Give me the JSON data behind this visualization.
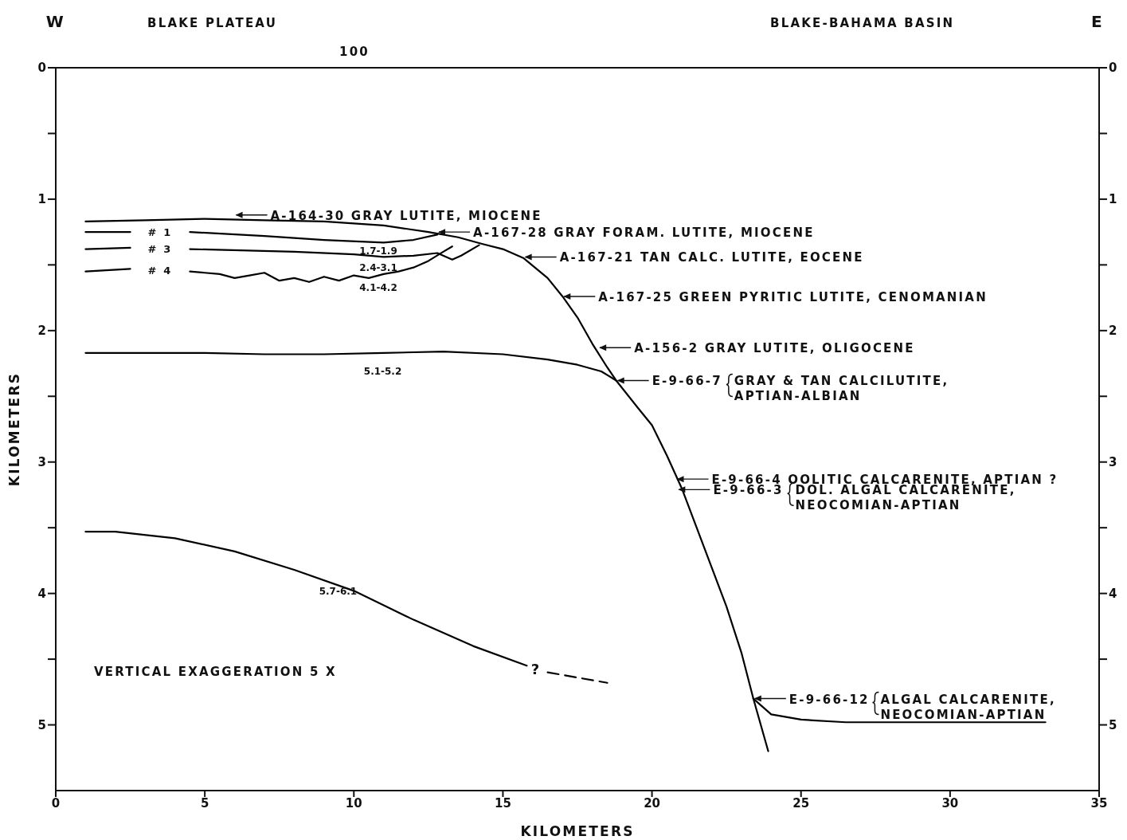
{
  "chart_data": {
    "type": "line",
    "xlabel": "KILOMETERS",
    "ylabel": "KILOMETERS",
    "xlim": [
      0,
      35
    ],
    "xticks": [
      0,
      5,
      10,
      15,
      20,
      25,
      30,
      35
    ],
    "ylim": [
      5.5,
      0
    ],
    "yticks": [
      0,
      {
        "value": 0.5,
        "label": null
      },
      1,
      {
        "value": 1.5,
        "label": null
      },
      2,
      {
        "value": 2.5,
        "label": null
      },
      3,
      {
        "value": 3.5,
        "label": null
      },
      4,
      {
        "value": 4.5,
        "label": null
      },
      5
    ],
    "y2lim": [
      5.5,
      0
    ],
    "y2ticks": [
      0,
      {
        "value": 0.5,
        "label": null
      },
      1,
      {
        "value": 1.5,
        "label": null
      },
      2,
      {
        "value": 2.5,
        "label": null
      },
      3,
      {
        "value": 3.5,
        "label": null
      },
      4,
      {
        "value": 4.5,
        "label": null
      },
      5
    ],
    "marker": "none",
    "line_style": "solid",
    "series": [
      {
        "color": "#000000",
        "x": [
          1,
          3,
          5,
          7,
          9,
          11,
          12.5,
          13.5,
          14.3,
          15,
          15.7,
          16.5,
          17,
          17.5,
          18,
          18.5,
          18.8,
          19.5,
          20,
          20.5,
          21,
          21.5,
          22,
          22.5,
          23,
          23.4,
          23.9
        ],
        "values": [
          1.17,
          1.16,
          1.15,
          1.16,
          1.17,
          1.2,
          1.25,
          1.29,
          1.34,
          1.38,
          1.45,
          1.6,
          1.74,
          1.9,
          2.1,
          2.28,
          2.38,
          2.58,
          2.72,
          2.95,
          3.2,
          3.5,
          3.8,
          4.1,
          4.45,
          4.8,
          5.2
        ]
      },
      {
        "color": "#000000",
        "x": [
          23.4,
          24,
          25,
          26.5,
          30,
          33.2
        ],
        "values": [
          4.8,
          4.92,
          4.96,
          4.98,
          4.98,
          4.98
        ]
      },
      {
        "name": "# 1",
        "color": "#000000",
        "x": [
          1,
          2.5,
          3.5,
          4.5,
          7,
          9,
          11,
          12,
          12.8
        ],
        "values": [
          1.25,
          1.25,
          null,
          1.25,
          1.28,
          1.31,
          1.33,
          1.31,
          1.27
        ]
      },
      {
        "name": "# 3",
        "color": "#000000",
        "x": [
          1,
          2.5,
          3.5,
          4.5,
          8,
          10,
          11,
          12,
          12.8,
          13.3,
          13.6,
          14.2
        ],
        "values": [
          1.38,
          1.37,
          null,
          1.38,
          1.4,
          1.42,
          1.44,
          1.43,
          1.41,
          1.46,
          1.43,
          1.35
        ]
      },
      {
        "name": "# 4",
        "color": "#000000",
        "x": [
          1,
          2.5,
          3.5,
          4.5,
          5.5,
          6,
          6.5,
          7,
          7.5,
          8,
          8.5,
          9,
          9.5,
          10,
          10.5,
          11,
          11.5,
          12,
          12.5,
          13,
          13.3
        ],
        "values": [
          1.55,
          1.53,
          null,
          1.55,
          1.57,
          1.6,
          1.58,
          1.56,
          1.62,
          1.6,
          1.63,
          1.59,
          1.62,
          1.58,
          1.6,
          1.57,
          1.55,
          1.52,
          1.47,
          1.4,
          1.36
        ]
      },
      {
        "name": "5.1-5.2",
        "color": "#000000",
        "x": [
          1,
          3,
          5,
          7,
          9,
          11,
          13,
          15,
          16.5,
          17.5,
          18.3,
          18.8
        ],
        "values": [
          2.17,
          2.17,
          2.17,
          2.18,
          2.18,
          2.17,
          2.16,
          2.18,
          2.22,
          2.26,
          2.31,
          2.38
        ]
      },
      {
        "name": "5.7-6.1",
        "color": "#000000",
        "x": [
          1,
          2,
          4,
          6,
          8,
          10,
          12,
          14,
          15.8
        ],
        "values": [
          3.53,
          3.53,
          3.58,
          3.68,
          3.82,
          3.98,
          4.2,
          4.4,
          4.55
        ]
      },
      {
        "color": "#000000",
        "line_style": "dashed",
        "x": [
          16.5,
          18.5
        ],
        "values": [
          4.6,
          4.68
        ]
      }
    ],
    "annotations": [
      "W",
      "BLAKE PLATEAU",
      "BLAKE-BAHAMA BASIN",
      "E",
      "1.7-1.9",
      "2.4-3.1",
      "4.1-4.2",
      "?",
      "VERTICAL EXAGGERATION 5 X",
      "100",
      {
        "text": "A-164-30 GRAY LUTITE, MIOCENE",
        "x": 6,
        "y": 1.12
      },
      {
        "text": "A-167-28 GRAY FORAM. LUTITE, MIOCENE",
        "x": 12.8,
        "y": 1.25
      },
      {
        "text": "A-167-21 TAN CALC. LUTITE, EOCENE",
        "x": 15.7,
        "y": 1.44
      },
      {
        "text": "A-167-25 GREEN PYRITIC LUTITE, CENOMANIAN",
        "x": 17,
        "y": 1.74
      },
      {
        "text": "A-156-2 GRAY LUTITE, OLIGOCENE",
        "x": 18.2,
        "y": 2.13
      },
      {
        "text": "E-9-66-7\nGRAY & TAN CALCILUTITE,\nAPTIAN-ALBIAN",
        "x": 18.8,
        "y": 2.38
      },
      {
        "text": "E-9-66-4 OOLITIC CALCARENITE, APTIAN ?",
        "x": 20.8,
        "y": 3.13
      },
      {
        "text": "E-9-66-3\nDOL. ALGAL CALCARENITE,\nNEOCOMIAN-APTIAN",
        "x": 20.85,
        "y": 3.21
      },
      {
        "text": "E-9-66-12\nALGAL CALCARENITE,\nNEOCOMIAN-APTIAN",
        "x": 23.4,
        "y": 4.8
      }
    ]
  }
}
